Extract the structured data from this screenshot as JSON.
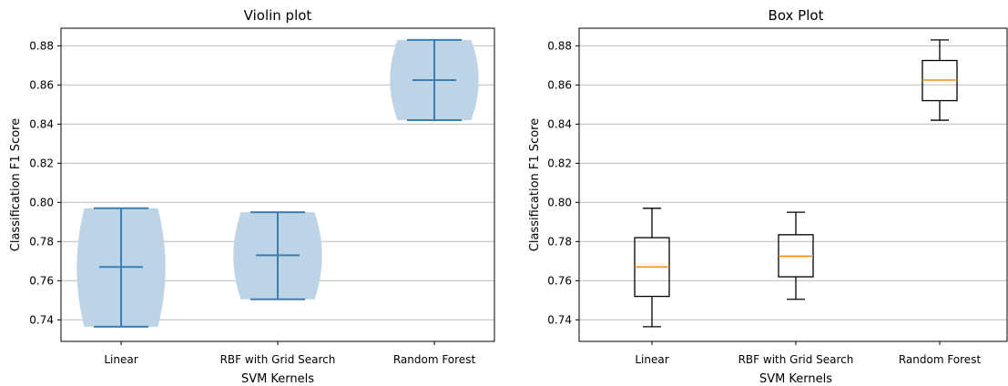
{
  "colors": {
    "violin_fill": "#bcd4e6",
    "violin_line": "#3a7fb4",
    "box_line": "#000000",
    "median_line": "#ff8c1a",
    "grid": "#c8c8c8"
  },
  "chart_data": [
    {
      "type": "violin",
      "title": "Violin plot",
      "xlabel": "SVM Kernels",
      "ylabel": "Classification F1 Score",
      "categories": [
        "Linear",
        "RBF with Grid Search",
        "Random Forest"
      ],
      "yticks": [
        "0.74",
        "0.76",
        "0.78",
        "0.80",
        "0.82",
        "0.84",
        "0.86",
        "0.88"
      ],
      "ylim": [
        0.729,
        0.889
      ],
      "grid": "horizontal",
      "series": [
        {
          "category": "Linear",
          "min": 0.7365,
          "max": 0.797,
          "mean": 0.767
        },
        {
          "category": "RBF with Grid Search",
          "min": 0.7505,
          "max": 0.795,
          "mean": 0.773
        },
        {
          "category": "Random Forest",
          "min": 0.842,
          "max": 0.883,
          "mean": 0.8625
        }
      ]
    },
    {
      "type": "box",
      "title": "Box Plot",
      "xlabel": "SVM Kernels",
      "ylabel": "Classification F1 Score",
      "categories": [
        "Linear",
        "RBF with Grid Search",
        "Random Forest"
      ],
      "yticks": [
        "0.74",
        "0.76",
        "0.78",
        "0.80",
        "0.82",
        "0.84",
        "0.86",
        "0.88"
      ],
      "ylim": [
        0.729,
        0.889
      ],
      "grid": "horizontal",
      "series": [
        {
          "category": "Linear",
          "min": 0.7365,
          "q1": 0.752,
          "median": 0.767,
          "q3": 0.782,
          "max": 0.797
        },
        {
          "category": "RBF with Grid Search",
          "min": 0.7505,
          "q1": 0.762,
          "median": 0.7725,
          "q3": 0.7835,
          "max": 0.795
        },
        {
          "category": "Random Forest",
          "min": 0.842,
          "q1": 0.852,
          "median": 0.8625,
          "q3": 0.8725,
          "max": 0.883
        }
      ]
    }
  ]
}
